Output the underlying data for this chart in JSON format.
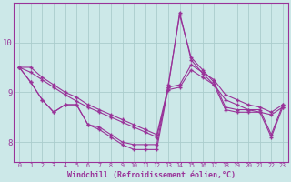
{
  "xlabel": "Windchill (Refroidissement éolien,°C)",
  "ylabel": "",
  "bg_color": "#cce8e8",
  "grid_color": "#aacccc",
  "line_color": "#993399",
  "xlim": [
    -0.5,
    23.5
  ],
  "ylim": [
    7.6,
    10.8
  ],
  "yticks": [
    8,
    9,
    10
  ],
  "xticks": [
    0,
    1,
    2,
    3,
    4,
    5,
    6,
    7,
    8,
    9,
    10,
    11,
    12,
    13,
    14,
    15,
    16,
    17,
    18,
    19,
    20,
    21,
    22,
    23
  ],
  "series": [
    [
      9.5,
      9.5,
      9.3,
      9.15,
      9.0,
      8.9,
      8.75,
      8.65,
      8.55,
      8.45,
      8.35,
      8.25,
      8.15,
      9.1,
      9.15,
      9.55,
      9.4,
      9.25,
      8.95,
      8.85,
      8.75,
      8.7,
      8.6,
      8.75
    ],
    [
      9.5,
      9.4,
      9.25,
      9.1,
      8.95,
      8.82,
      8.7,
      8.6,
      8.5,
      8.4,
      8.3,
      8.2,
      8.1,
      9.05,
      9.1,
      9.45,
      9.3,
      9.15,
      8.85,
      8.75,
      8.65,
      8.6,
      8.55,
      8.7
    ],
    [
      9.5,
      9.2,
      8.85,
      8.6,
      8.75,
      8.75,
      8.35,
      8.3,
      8.15,
      8.0,
      7.95,
      7.95,
      7.95,
      9.15,
      10.55,
      9.7,
      9.45,
      9.2,
      8.7,
      8.65,
      8.65,
      8.65,
      8.15,
      8.75
    ],
    [
      9.5,
      9.2,
      8.85,
      8.6,
      8.75,
      8.75,
      8.35,
      8.25,
      8.1,
      7.95,
      7.85,
      7.85,
      7.85,
      9.1,
      10.6,
      9.65,
      9.38,
      9.15,
      8.65,
      8.6,
      8.6,
      8.6,
      8.1,
      8.7
    ]
  ]
}
